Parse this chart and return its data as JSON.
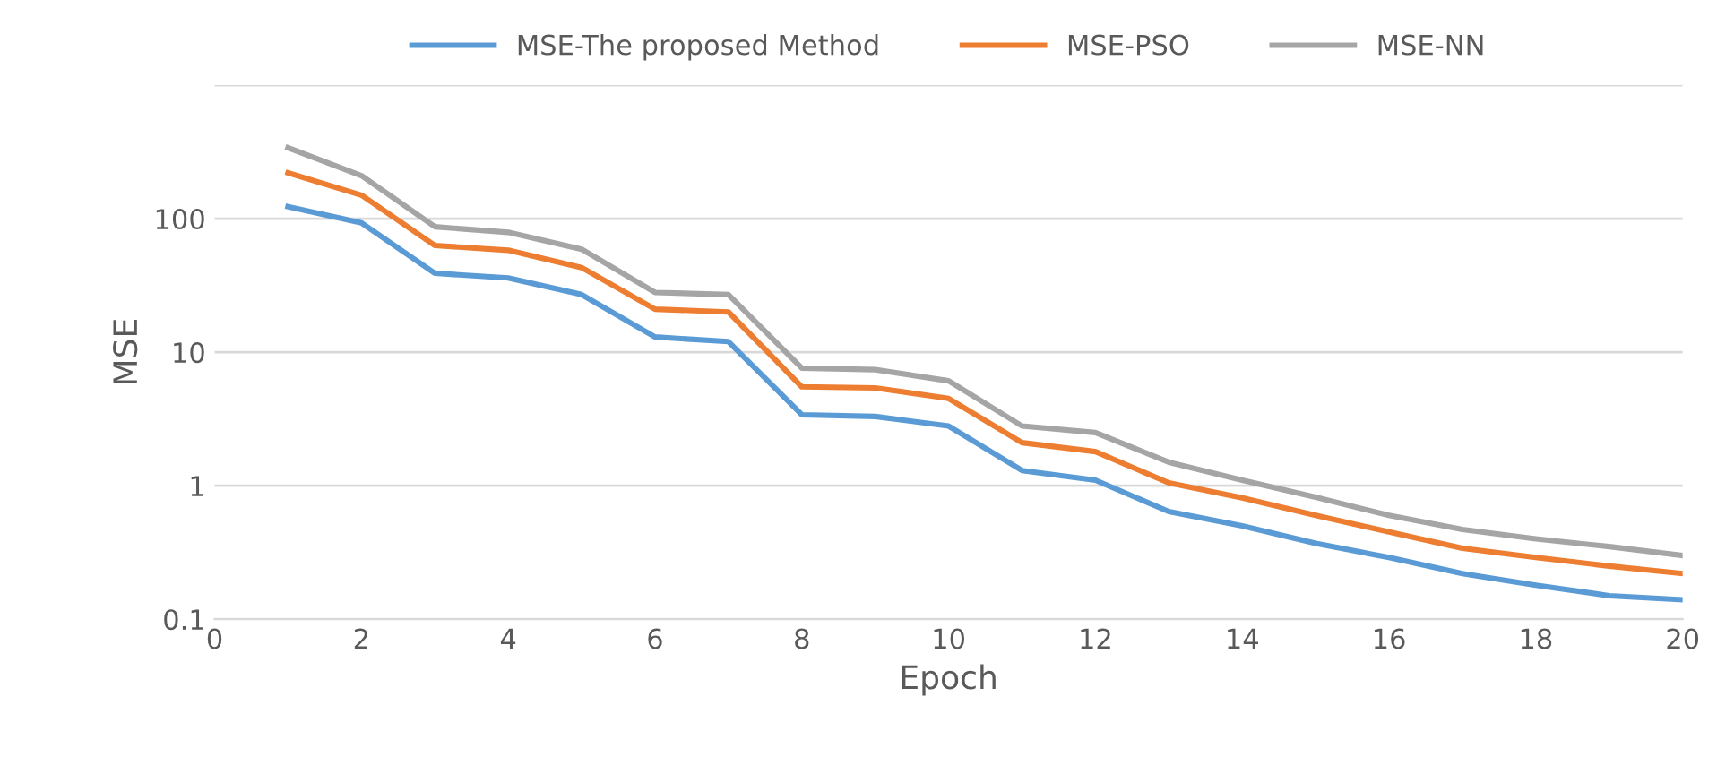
{
  "chart_data": {
    "type": "line",
    "xlabel": "Epoch",
    "ylabel": "MSE",
    "log": "y",
    "grid": "y",
    "legend": "top",
    "marker": "none",
    "line_style": "solid",
    "x": [
      1,
      2,
      3,
      4,
      5,
      6,
      7,
      8,
      9,
      10,
      11,
      12,
      13,
      14,
      15,
      16,
      17,
      18,
      19,
      20
    ],
    "xlim": [
      0,
      20
    ],
    "xticks": [
      0,
      2,
      4,
      6,
      8,
      10,
      12,
      14,
      16,
      18,
      20
    ],
    "ylim": [
      0.1,
      1000
    ],
    "yticks": [
      {
        "value": 0.1,
        "label": "0.1"
      },
      1,
      10,
      100,
      {
        "value": 1000,
        "label": null
      }
    ],
    "series": [
      {
        "name": "MSE-The proposed Method",
        "color": "#5b9bd5",
        "values": [
          123,
          93,
          39,
          36,
          27,
          13,
          12,
          3.4,
          3.3,
          2.8,
          1.3,
          1.1,
          0.64,
          0.5,
          0.37,
          0.29,
          0.22,
          0.18,
          0.15,
          0.14
        ]
      },
      {
        "name": "MSE-PSO",
        "color": "#ed7d31",
        "values": [
          220,
          150,
          63,
          58,
          43,
          21,
          20,
          5.5,
          5.4,
          4.5,
          2.1,
          1.8,
          1.05,
          0.81,
          0.6,
          0.45,
          0.34,
          0.29,
          0.25,
          0.22
        ]
      },
      {
        "name": "MSE-NN",
        "color": "#a5a5a5",
        "values": [
          340,
          210,
          87,
          79,
          59,
          28,
          27,
          7.6,
          7.4,
          6.1,
          2.8,
          2.5,
          1.5,
          1.1,
          0.82,
          0.6,
          0.47,
          0.4,
          0.35,
          0.3
        ]
      }
    ]
  }
}
